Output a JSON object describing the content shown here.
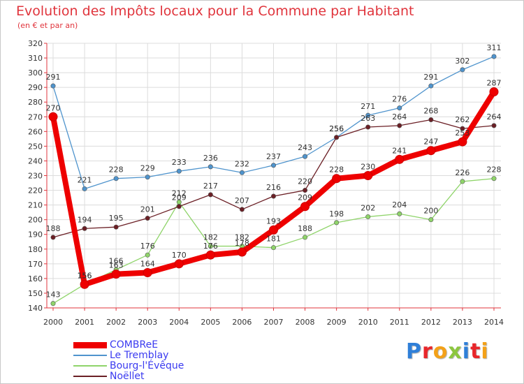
{
  "title": "Evolution des Impôts locaux pour la Commune par Habitant",
  "subtitle": "(en € et par an)",
  "logo": {
    "letters": [
      "P",
      "r",
      "o",
      "x",
      "i",
      "t",
      "i"
    ],
    "colors": [
      "#2f7fd8",
      "#e8262a",
      "#f3a118",
      "#8cc63f",
      "#2f7fd8",
      "#e8262a",
      "#f3a118"
    ]
  },
  "chart_data": {
    "type": "line",
    "x": [
      "2000",
      "2001",
      "2002",
      "2003",
      "2004",
      "2005",
      "2006",
      "2007",
      "2008",
      "2009",
      "2010",
      "2011",
      "2012",
      "2013",
      "2014"
    ],
    "ylim": [
      140,
      320
    ],
    "yticks": [
      "140",
      "150",
      "160",
      "170",
      "180",
      "190",
      "200",
      "210",
      "220",
      "230",
      "240",
      "250",
      "260",
      "270",
      "280",
      "290",
      "300",
      "310",
      "320"
    ],
    "grid": true,
    "legend_position": "bottom-left",
    "series": [
      {
        "name": "COMBReE",
        "color": "#ee0000",
        "emphasis": true,
        "values": [
          270,
          156,
          163,
          164,
          170,
          176,
          178,
          193,
          209,
          228,
          230,
          241,
          247,
          253,
          287
        ],
        "labels": [
          "270",
          "156",
          "163",
          "164",
          "170",
          "176",
          "178",
          "193",
          "209",
          "228",
          "230",
          "241",
          "247",
          "253",
          "287"
        ]
      },
      {
        "name": "Le Tremblay",
        "color": "#4f94cd",
        "emphasis": false,
        "values": [
          291,
          221,
          228,
          229,
          233,
          236,
          232,
          237,
          243,
          256,
          271,
          276,
          291,
          302,
          311
        ],
        "labels": [
          "291",
          "221",
          "228",
          "229",
          "233",
          "236",
          "232",
          "237",
          "243",
          "256",
          "271",
          "276",
          "291",
          "302",
          "311"
        ]
      },
      {
        "name": "Bourg-l'Évêque",
        "color": "#8fd46a",
        "emphasis": false,
        "values": [
          143,
          156,
          166,
          176,
          212,
          182,
          182,
          181,
          188,
          198,
          202,
          204,
          200,
          226,
          228
        ],
        "labels": [
          "143",
          "156",
          "166",
          "176",
          "212",
          "182",
          "182",
          "181",
          "188",
          "198",
          "202",
          "204",
          "200",
          "226",
          "228"
        ]
      },
      {
        "name": "Noëllet",
        "color": "#6b1f25",
        "emphasis": false,
        "values": [
          188,
          194,
          195,
          201,
          209,
          217,
          207,
          216,
          220,
          256,
          263,
          264,
          268,
          262,
          264
        ],
        "labels": [
          "188",
          "194",
          "195",
          "201",
          "209",
          "217",
          "207",
          "216",
          "220",
          "256",
          "263",
          "264",
          "268",
          "262",
          "264"
        ]
      }
    ]
  }
}
